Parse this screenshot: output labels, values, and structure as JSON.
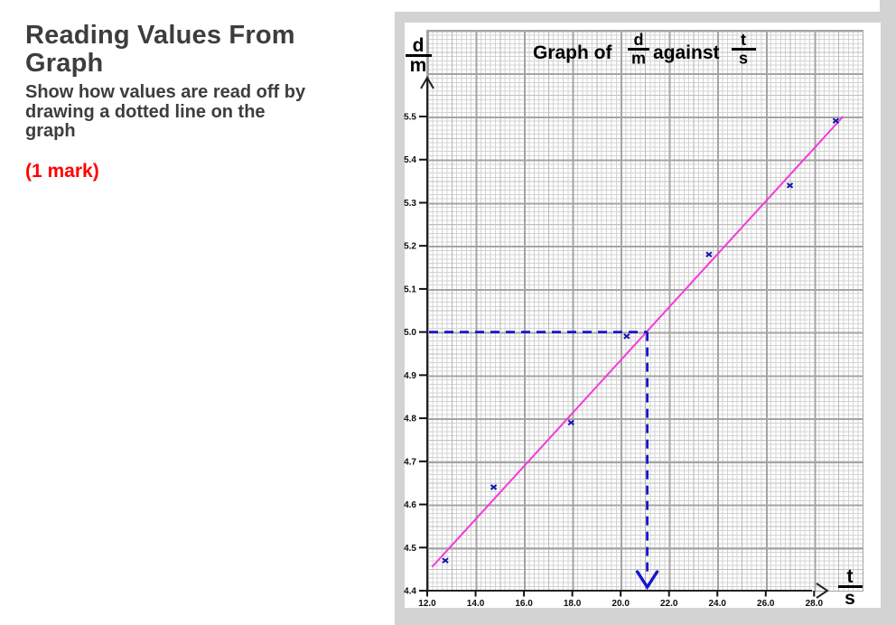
{
  "question": {
    "heading_lines": [
      "Reading Values From",
      "Graph"
    ],
    "instruction_lines": [
      "Show how values are read off by",
      "drawing a dotted line on the",
      "graph"
    ],
    "mark": "(1 mark)"
  },
  "graph": {
    "title": {
      "prefix": "Graph of",
      "frac1_num": "d",
      "frac1_den": "m",
      "middle": "against",
      "frac2_num": "t",
      "frac2_den": "s"
    },
    "y_axis_label": {
      "num": "d",
      "den": "m"
    },
    "x_axis_label": {
      "num": "t",
      "den": "s"
    }
  },
  "chart_data": {
    "type": "scatter",
    "title": "Graph of d/m against t/s",
    "xlabel": "t/s",
    "ylabel": "d/m",
    "xlim": [
      12.0,
      30.0
    ],
    "ylim": [
      4.4,
      5.5
    ],
    "grid": true,
    "xticks": [
      "12.0",
      "14.0",
      "16.0",
      "18.0",
      "20.0",
      "22.0",
      "24.0",
      "26.0",
      "28.0"
    ],
    "yticks": [
      "4.4",
      "4.5",
      "4.6",
      "4.7",
      "4.8",
      "4.9",
      "5.0",
      "5.1",
      "5.2",
      "5.3",
      "5.4",
      "5.5"
    ],
    "points": [
      {
        "t": 12.75,
        "d": 4.47
      },
      {
        "t": 14.75,
        "d": 4.64
      },
      {
        "t": 17.95,
        "d": 4.79
      },
      {
        "t": 20.25,
        "d": 4.99
      },
      {
        "t": 23.65,
        "d": 5.18
      },
      {
        "t": 27.0,
        "d": 5.34
      },
      {
        "t": 28.9,
        "d": 5.49
      }
    ],
    "trend_line": {
      "t1": 12.2,
      "d1": 4.455,
      "t2": 29.2,
      "d2": 5.5,
      "color": "#f43ad9"
    },
    "reading": {
      "d": 5.0,
      "t": 21.1,
      "line_color": "#1515cf"
    },
    "point_color": "#1414b0"
  }
}
